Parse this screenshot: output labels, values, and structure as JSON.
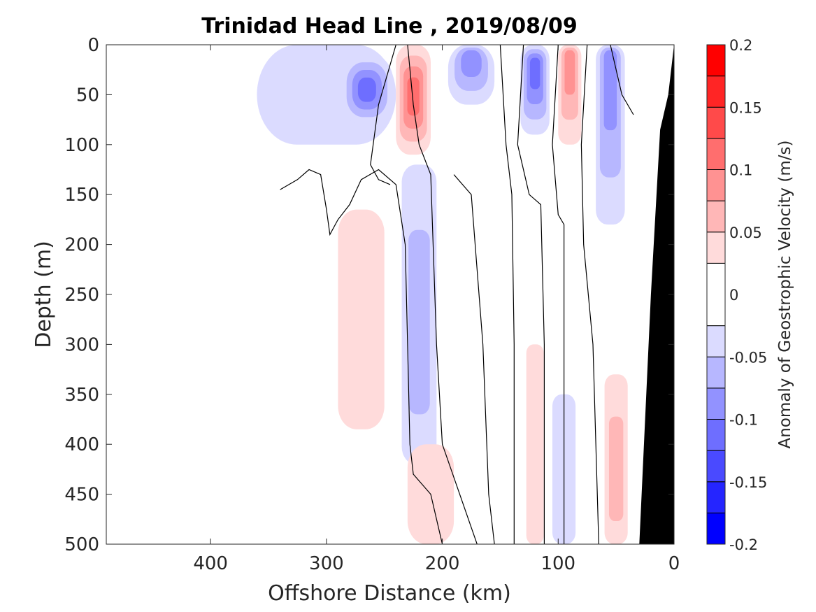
{
  "chart_data": {
    "type": "heatmap",
    "title": "Trinidad Head Line , 2019/08/09",
    "xlabel": "Offshore Distance (km)",
    "ylabel": "Depth (m)",
    "xlim": [
      490,
      0
    ],
    "ylim": [
      0,
      500
    ],
    "x_reversed": true,
    "y_reversed": true,
    "x_ticks": [
      "400",
      "300",
      "200",
      "100",
      "0"
    ],
    "y_ticks": [
      "0",
      "50",
      "100",
      "150",
      "200",
      "250",
      "300",
      "350",
      "400",
      "450",
      "500"
    ],
    "colorbar": {
      "label": "Anomaly of Geostrophic Velocity (m/s)",
      "range": [
        -0.2,
        0.2
      ],
      "ticks": [
        "0.2",
        "0.15",
        "0.1",
        "0.05",
        "0",
        "-0.05",
        "-0.1",
        "-0.15",
        "-0.2"
      ],
      "levels": [
        -0.2,
        -0.175,
        -0.15,
        -0.125,
        -0.1,
        -0.075,
        -0.05,
        -0.025,
        0.025,
        0.05,
        0.075,
        0.1,
        0.125,
        0.15,
        0.175,
        0.2
      ],
      "colors": [
        "#0000ff",
        "#2525ff",
        "#4a4aff",
        "#6e6eff",
        "#9292ff",
        "#b7b7ff",
        "#dbdbff",
        "#ffffff",
        "#ffdbdb",
        "#ffb7b7",
        "#ff9292",
        "#ff6e6e",
        "#ff4a4a",
        "#ff2525",
        "#ff0000"
      ]
    },
    "bathymetry_color": "#000000",
    "features": [
      {
        "sign": "neg",
        "level": 1,
        "x": 300,
        "depth": 45,
        "width": 120,
        "top": 0,
        "bottom": 100
      },
      {
        "sign": "neg",
        "level": 4,
        "x": 265,
        "depth": 45,
        "width": 45,
        "top": 10,
        "bottom": 80
      },
      {
        "sign": "pos",
        "level": 4,
        "x": 225,
        "depth": 50,
        "width": 30,
        "top": 0,
        "bottom": 110
      },
      {
        "sign": "neg",
        "level": 3,
        "x": 175,
        "depth": 10,
        "width": 40,
        "top": 0,
        "bottom": 60
      },
      {
        "sign": "neg",
        "level": 4,
        "x": 120,
        "depth": 20,
        "width": 25,
        "top": 0,
        "bottom": 90
      },
      {
        "sign": "pos",
        "level": 3,
        "x": 90,
        "depth": 10,
        "width": 20,
        "top": 0,
        "bottom": 100
      },
      {
        "sign": "neg",
        "level": 3,
        "x": 55,
        "depth": 10,
        "width": 25,
        "top": 0,
        "bottom": 180
      },
      {
        "sign": "pos",
        "level": 1,
        "x": 270,
        "depth": 300,
        "width": 40,
        "top": 165,
        "bottom": 385
      },
      {
        "sign": "neg",
        "level": 2,
        "x": 220,
        "depth": 290,
        "width": 30,
        "top": 120,
        "bottom": 420
      },
      {
        "sign": "pos",
        "level": 1,
        "x": 210,
        "depth": 460,
        "width": 40,
        "top": 400,
        "bottom": 500
      },
      {
        "sign": "pos",
        "level": 1,
        "x": 120,
        "depth": 420,
        "width": 15,
        "top": 300,
        "bottom": 500
      },
      {
        "sign": "neg",
        "level": 1,
        "x": 95,
        "depth": 430,
        "width": 20,
        "top": 350,
        "bottom": 500
      },
      {
        "sign": "pos",
        "level": 2,
        "x": 50,
        "depth": 440,
        "width": 20,
        "top": 330,
        "bottom": 500
      }
    ],
    "zero_contours": [
      [
        [
          340,
          145
        ],
        [
          325,
          135
        ],
        [
          315,
          125
        ],
        [
          305,
          130
        ],
        [
          300,
          165
        ],
        [
          297,
          190
        ],
        [
          290,
          175
        ],
        [
          280,
          160
        ],
        [
          270,
          135
        ],
        [
          255,
          125
        ],
        [
          240,
          140
        ],
        [
          232,
          200
        ],
        [
          230,
          300
        ],
        [
          228,
          400
        ],
        [
          225,
          430
        ],
        [
          210,
          450
        ],
        [
          200,
          500
        ]
      ],
      [
        [
          240,
          0
        ],
        [
          255,
          60
        ],
        [
          262,
          120
        ],
        [
          255,
          135
        ],
        [
          245,
          140
        ]
      ],
      [
        [
          230,
          0
        ],
        [
          225,
          60
        ],
        [
          220,
          100
        ],
        [
          210,
          130
        ],
        [
          205,
          300
        ],
        [
          200,
          400
        ],
        [
          170,
          500
        ]
      ],
      [
        [
          190,
          130
        ],
        [
          175,
          150
        ],
        [
          165,
          300
        ],
        [
          160,
          450
        ],
        [
          155,
          500
        ]
      ],
      [
        [
          150,
          0
        ],
        [
          145,
          100
        ],
        [
          140,
          150
        ],
        [
          138,
          300
        ],
        [
          138,
          500
        ]
      ],
      [
        [
          130,
          0
        ],
        [
          135,
          100
        ],
        [
          125,
          150
        ],
        [
          115,
          160
        ],
        [
          112,
          300
        ],
        [
          112,
          500
        ]
      ],
      [
        [
          100,
          0
        ],
        [
          105,
          100
        ],
        [
          100,
          170
        ],
        [
          95,
          180
        ],
        [
          95,
          300
        ],
        [
          95,
          500
        ]
      ],
      [
        [
          75,
          0
        ],
        [
          80,
          100
        ],
        [
          78,
          200
        ],
        [
          70,
          300
        ],
        [
          65,
          500
        ]
      ],
      [
        [
          55,
          0
        ],
        [
          45,
          50
        ],
        [
          35,
          70
        ]
      ]
    ]
  }
}
